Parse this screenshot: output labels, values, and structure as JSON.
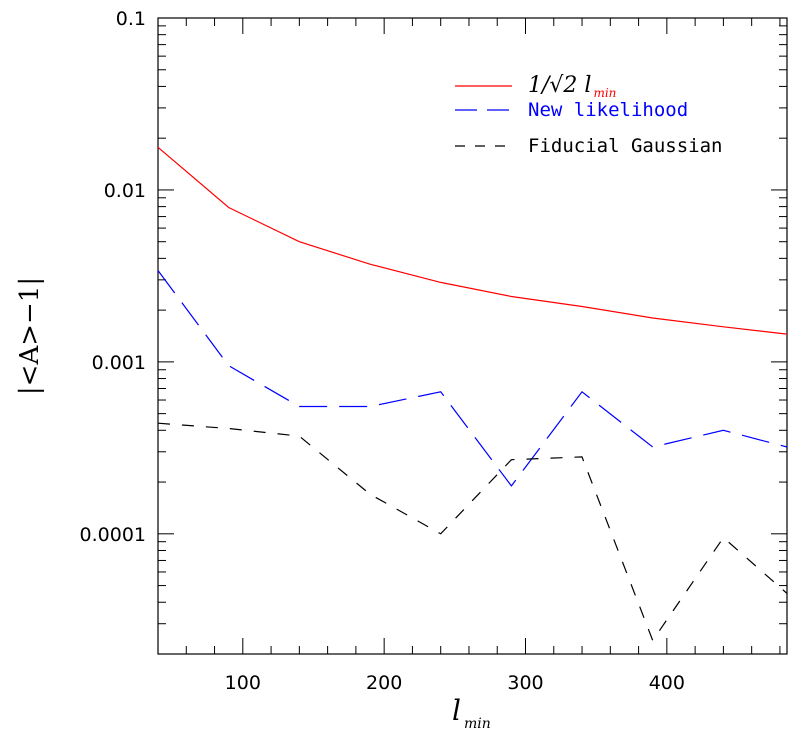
{
  "chart_data": {
    "type": "line",
    "title": "",
    "xlabel": "l",
    "xlabel_sub": "min",
    "ylabel": "|<A>−1|",
    "xlim": [
      40,
      485
    ],
    "ylim": [
      2e-05,
      0.1
    ],
    "yscale": "log",
    "grid": false,
    "legend_position": "top-right",
    "x_ticks": [
      100,
      200,
      300,
      400
    ],
    "x_tick_labels": [
      "100",
      "200",
      "300",
      "400"
    ],
    "y_ticks": [
      0.0001,
      0.001,
      0.01,
      0.1
    ],
    "y_tick_labels": [
      "0.0001",
      "0.001",
      "0.01",
      "0.1"
    ],
    "series": [
      {
        "name": "1/√2 l",
        "name_sub": "min",
        "color": "#ff0000",
        "style": "solid",
        "x": [
          40,
          90,
          140,
          190,
          240,
          290,
          340,
          390,
          440,
          485
        ],
        "y": [
          0.0177,
          0.0079,
          0.005,
          0.0037,
          0.0029,
          0.0024,
          0.0021,
          0.0018,
          0.0016,
          0.00145
        ]
      },
      {
        "name": "New likelihood",
        "color": "#0000ff",
        "style": "long-dash",
        "x": [
          40,
          90,
          140,
          190,
          240,
          290,
          340,
          390,
          440,
          485
        ],
        "y": [
          0.0034,
          0.00095,
          0.00055,
          0.00055,
          0.00067,
          0.00019,
          0.00067,
          0.00032,
          0.0004,
          0.00032
        ]
      },
      {
        "name": "Fiducial Gaussian",
        "color": "#000000",
        "style": "short-dash",
        "x": [
          40,
          90,
          140,
          190,
          240,
          290,
          340,
          390,
          440,
          485
        ],
        "y": [
          0.00044,
          0.00041,
          0.00037,
          0.00017,
          0.0001,
          0.00027,
          0.00028,
          2.4e-05,
          9.5e-05,
          4.5e-05
        ]
      }
    ]
  }
}
